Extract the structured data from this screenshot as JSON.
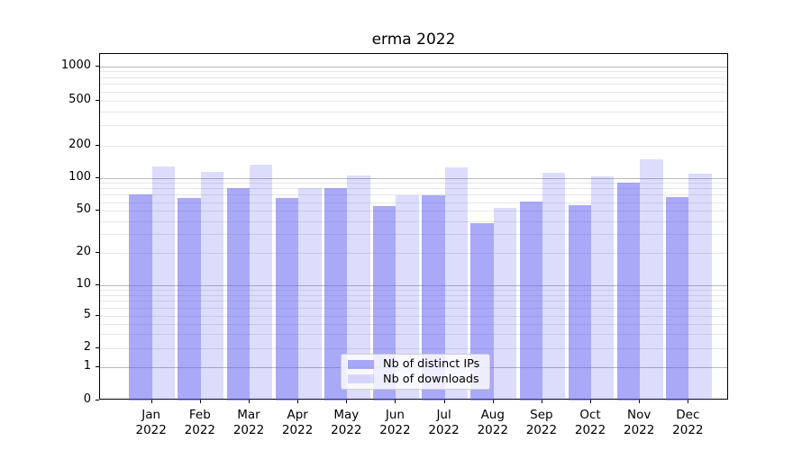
{
  "chart_data": {
    "type": "bar",
    "title": "erma 2022",
    "categories": [
      "Jan 2022",
      "Feb 2022",
      "Mar 2022",
      "Apr 2022",
      "May 2022",
      "Jun 2022",
      "Jul 2022",
      "Aug 2022",
      "Sep 2022",
      "Oct 2022",
      "Nov 2022",
      "Dec 2022"
    ],
    "months": [
      "Jan",
      "Feb",
      "Mar",
      "Apr",
      "May",
      "Jun",
      "Jul",
      "Aug",
      "Sep",
      "Oct",
      "Nov",
      "Dec"
    ],
    "year_line": "2022",
    "series": [
      {
        "name": "Nb of distinct IPs",
        "values": [
          70,
          65,
          80,
          65,
          81,
          55,
          69,
          38,
          61,
          56,
          91,
          67
        ]
      },
      {
        "name": "Nb of downloads",
        "values": [
          127,
          113,
          131,
          81,
          104,
          69,
          124,
          53,
          112,
          103,
          147,
          110
        ]
      }
    ],
    "yscale": "symlog",
    "ylim": [
      0,
      1300
    ],
    "ytick_values": [
      0,
      1,
      2,
      5,
      10,
      20,
      50,
      100,
      200,
      500,
      1000
    ],
    "ytick_labels": [
      "0",
      "1",
      "2",
      "5",
      "10",
      "20",
      "50",
      "100",
      "200",
      "500",
      "1000"
    ],
    "minor_grid_values": [
      3,
      4,
      6,
      7,
      8,
      9,
      30,
      40,
      60,
      70,
      80,
      90,
      300,
      400,
      600,
      700,
      800,
      900
    ],
    "major_grid_values": [
      1,
      10,
      100,
      1000
    ],
    "grid": "horizontal",
    "legend_position": "lower-center",
    "colors": {
      "bar_base": "#5a5af0",
      "ips_opacity": 0.52,
      "downloads_opacity": 0.21,
      "grid_major": "#b9b9b9",
      "grid_minor": "#e6e6e6",
      "axis": "#000000"
    }
  }
}
